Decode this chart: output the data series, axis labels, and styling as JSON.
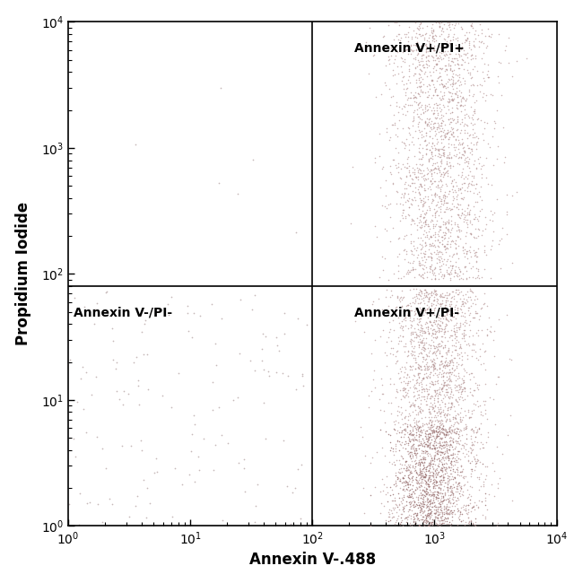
{
  "xlabel": "Annexin V-.488",
  "ylabel": "Propidium Iodide",
  "xline": 100,
  "yline": 80,
  "quadrant_labels": {
    "Q1_label": "Annexin V+/PI+",
    "Q2_label": "Annexin V-/PI-",
    "Q3_label": "Annexin V+/PI-"
  },
  "sparse_color": "#b8a8a8",
  "dense_color_outer": "#b89898",
  "dense_color_inner": "#9e7878",
  "background_color": "#ffffff",
  "seed": 42,
  "n_q2": 150,
  "n_q3_dense": 2500,
  "n_q1_dense": 2000
}
